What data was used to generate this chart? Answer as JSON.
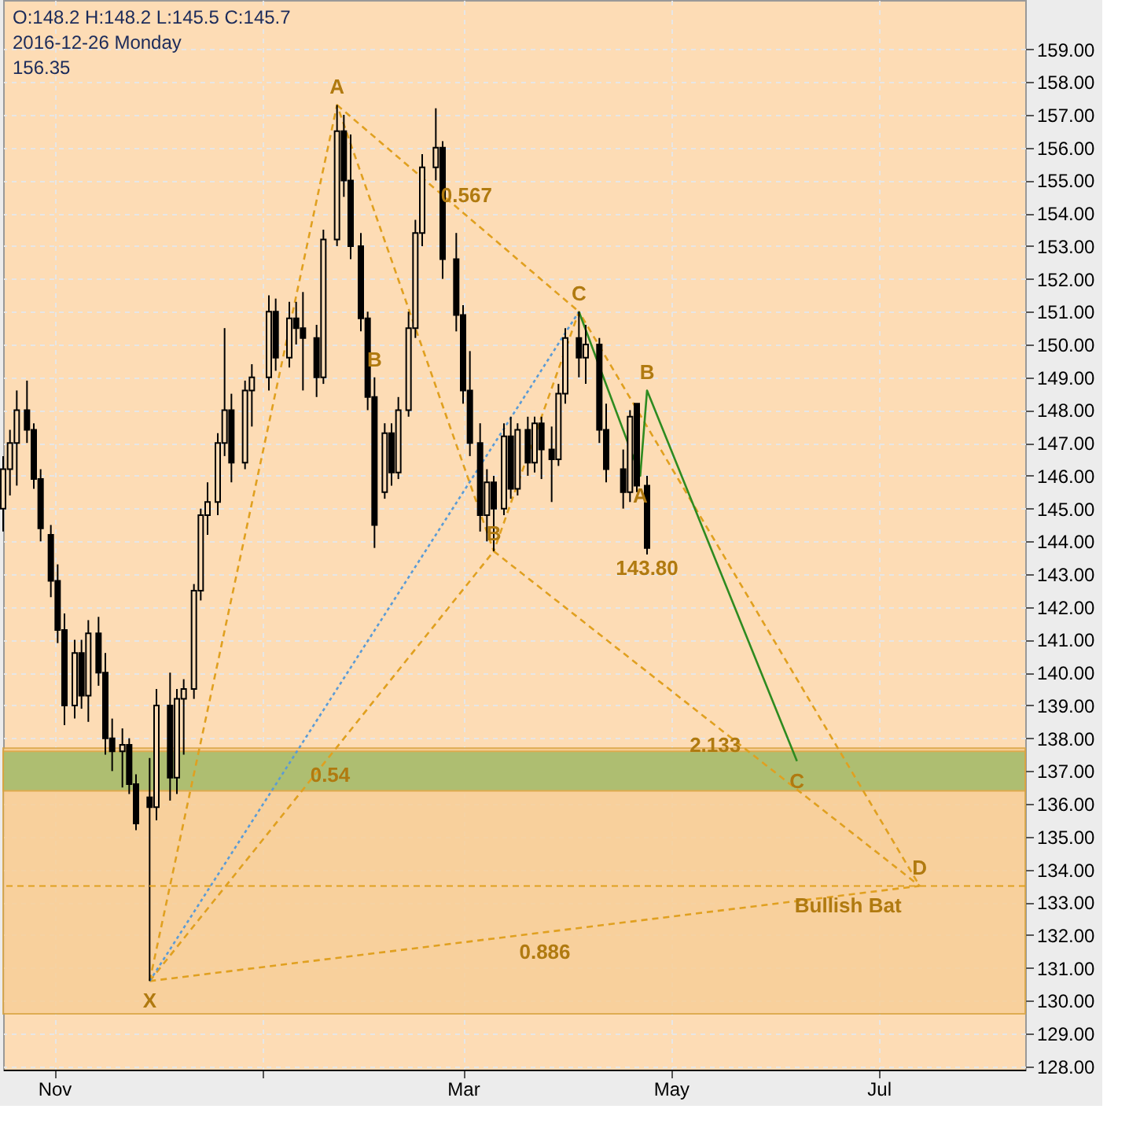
{
  "chart_data": {
    "type": "candlestick",
    "color": "#000000",
    "x": [
      "2016-10-17",
      "2016-10-19",
      "2016-10-21",
      "2016-10-24",
      "2016-10-26",
      "2016-10-28",
      "2016-10-31",
      "2016-11-02",
      "2016-11-04",
      "2016-11-07",
      "2016-11-09",
      "2016-11-11",
      "2016-11-14",
      "2016-11-16",
      "2016-11-18",
      "2016-11-21",
      "2016-11-23",
      "2016-11-25",
      "2016-11-29",
      "2016-12-01",
      "2016-12-05",
      "2016-12-07",
      "2016-12-09",
      "2016-12-12",
      "2016-12-14",
      "2016-12-16",
      "2016-12-19",
      "2016-12-21",
      "2016-12-23",
      "2016-12-27",
      "2016-12-29",
      "2017-01-03",
      "2017-01-05",
      "2017-01-09",
      "2017-01-11",
      "2017-01-13",
      "2017-01-17",
      "2017-01-19",
      "2017-01-23",
      "2017-01-25",
      "2017-01-27",
      "2017-01-30",
      "2017-02-01",
      "2017-02-03",
      "2017-02-06",
      "2017-02-08",
      "2017-02-10",
      "2017-02-13",
      "2017-02-15",
      "2017-02-17",
      "2017-02-21",
      "2017-02-23",
      "2017-02-27",
      "2017-03-01",
      "2017-03-03",
      "2017-03-06",
      "2017-03-08",
      "2017-03-10",
      "2017-03-13",
      "2017-03-15",
      "2017-03-17",
      "2017-03-20",
      "2017-03-22",
      "2017-03-24",
      "2017-03-27",
      "2017-03-29",
      "2017-03-31",
      "2017-04-04",
      "2017-04-06",
      "2017-04-10",
      "2017-04-12",
      "2017-04-17",
      "2017-04-19",
      "2017-04-21",
      "2017-04-24"
    ],
    "ohlc": [
      [
        145.0,
        146.6,
        144.3,
        146.2
      ],
      [
        146.2,
        147.4,
        145.4,
        147.0
      ],
      [
        147.0,
        148.6,
        145.7,
        148.0
      ],
      [
        148.0,
        148.9,
        147.0,
        147.4
      ],
      [
        147.4,
        147.6,
        145.6,
        145.9
      ],
      [
        145.9,
        146.2,
        144.0,
        144.4
      ],
      [
        144.2,
        144.5,
        142.3,
        142.8
      ],
      [
        142.8,
        143.3,
        140.9,
        141.3
      ],
      [
        141.3,
        141.8,
        138.4,
        139.0
      ],
      [
        139.0,
        141.0,
        138.6,
        140.6
      ],
      [
        140.6,
        141.0,
        138.9,
        139.3
      ],
      [
        139.3,
        141.6,
        138.5,
        141.2
      ],
      [
        141.2,
        141.7,
        139.6,
        140.0
      ],
      [
        140.0,
        140.6,
        137.5,
        138.0
      ],
      [
        138.0,
        138.6,
        137.0,
        137.6
      ],
      [
        137.6,
        138.3,
        136.5,
        137.8
      ],
      [
        137.8,
        138.0,
        136.3,
        136.6
      ],
      [
        136.6,
        136.9,
        135.2,
        135.4
      ],
      [
        136.2,
        137.4,
        130.6,
        135.9
      ],
      [
        135.9,
        139.5,
        135.5,
        139.0
      ],
      [
        139.0,
        140.0,
        136.1,
        136.8
      ],
      [
        136.8,
        139.5,
        136.3,
        139.2
      ],
      [
        139.2,
        139.8,
        137.5,
        139.5
      ],
      [
        139.5,
        142.7,
        139.2,
        142.5
      ],
      [
        142.5,
        145.0,
        142.2,
        144.8
      ],
      [
        144.8,
        145.8,
        144.2,
        145.2
      ],
      [
        145.2,
        147.3,
        144.8,
        147.0
      ],
      [
        147.0,
        150.5,
        146.6,
        148.0
      ],
      [
        148.0,
        148.5,
        145.8,
        146.4
      ],
      [
        146.4,
        148.9,
        146.2,
        148.6
      ],
      [
        148.6,
        149.4,
        147.5,
        149.0
      ],
      [
        149.0,
        151.5,
        148.6,
        151.0
      ],
      [
        151.0,
        151.4,
        149.2,
        149.6
      ],
      [
        149.6,
        151.3,
        149.3,
        150.8
      ],
      [
        150.8,
        151.3,
        150.0,
        150.5
      ],
      [
        150.5,
        151.6,
        148.6,
        150.2
      ],
      [
        150.2,
        150.6,
        148.4,
        149.0
      ],
      [
        149.0,
        153.5,
        148.8,
        153.2
      ],
      [
        153.2,
        157.3,
        153.0,
        156.5
      ],
      [
        156.5,
        157.0,
        154.5,
        155.0
      ],
      [
        155.0,
        156.4,
        152.6,
        153.0
      ],
      [
        153.0,
        153.4,
        150.4,
        150.8
      ],
      [
        150.8,
        151.0,
        148.0,
        148.4
      ],
      [
        148.4,
        149.0,
        143.8,
        144.5
      ],
      [
        145.5,
        147.6,
        145.3,
        147.3
      ],
      [
        147.3,
        147.6,
        145.7,
        146.1
      ],
      [
        146.1,
        148.4,
        145.9,
        148.0
      ],
      [
        148.0,
        151.0,
        147.8,
        150.5
      ],
      [
        150.5,
        153.8,
        150.2,
        153.4
      ],
      [
        153.4,
        155.8,
        153.0,
        155.4
      ],
      [
        155.4,
        157.2,
        155.0,
        156.0
      ],
      [
        156.0,
        156.2,
        152.0,
        152.6
      ],
      [
        152.6,
        153.4,
        150.4,
        150.9
      ],
      [
        150.9,
        151.2,
        148.2,
        148.6
      ],
      [
        148.6,
        149.8,
        146.6,
        147.0
      ],
      [
        147.0,
        147.6,
        144.3,
        144.8
      ],
      [
        144.8,
        146.2,
        144.0,
        145.8
      ],
      [
        145.8,
        146.0,
        143.7,
        145.0
      ],
      [
        145.0,
        147.6,
        144.8,
        147.2
      ],
      [
        147.2,
        147.8,
        145.3,
        145.6
      ],
      [
        145.6,
        147.6,
        145.4,
        147.4
      ],
      [
        147.4,
        147.8,
        146.0,
        146.4
      ],
      [
        146.4,
        147.8,
        146.1,
        147.6
      ],
      [
        147.6,
        147.8,
        145.9,
        146.8
      ],
      [
        146.8,
        147.5,
        145.2,
        146.5
      ],
      [
        146.5,
        148.8,
        146.3,
        148.5
      ],
      [
        148.5,
        150.5,
        148.2,
        150.2
      ],
      [
        150.2,
        151.0,
        149.0,
        149.6
      ],
      [
        149.6,
        150.6,
        148.8,
        150.0
      ],
      [
        150.0,
        150.2,
        147.0,
        147.4
      ],
      [
        147.4,
        148.2,
        145.8,
        146.2
      ],
      [
        146.2,
        146.8,
        145.0,
        145.5
      ],
      [
        145.5,
        148.0,
        145.2,
        147.8
      ],
      [
        148.2,
        148.2,
        145.5,
        145.7
      ],
      [
        145.7,
        146.0,
        143.6,
        143.8
      ]
    ],
    "series": [
      {
        "type": "line",
        "x": [
          "2016-11-29",
          "2017-01-23",
          "2017-03-10",
          "2017-04-04",
          "2017-07-13"
        ],
        "values": [
          130.6,
          157.3,
          143.7,
          151.0,
          133.5
        ],
        "color": "#e0a020",
        "line_style": "dashed"
      },
      {
        "type": "line",
        "x": [
          "2016-11-29",
          "2017-03-10"
        ],
        "values": [
          130.6,
          143.7
        ],
        "color": "#e0a020",
        "line_style": "dashed"
      },
      {
        "type": "line",
        "x": [
          "2017-01-23",
          "2017-04-04"
        ],
        "values": [
          157.3,
          151.0
        ],
        "color": "#e0a020",
        "line_style": "dashed"
      },
      {
        "type": "line",
        "x": [
          "2017-03-10",
          "2017-07-13"
        ],
        "values": [
          143.7,
          133.5
        ],
        "color": "#e0a020",
        "line_style": "dashed"
      },
      {
        "type": "line",
        "x": [
          "2016-11-29",
          "2017-07-13"
        ],
        "values": [
          130.6,
          133.5
        ],
        "color": "#e0a020",
        "line_style": "dashed"
      },
      {
        "type": "line",
        "x": [
          "2016-11-29",
          "2017-04-04"
        ],
        "values": [
          130.6,
          151.0
        ],
        "color": "#5b9bd5",
        "line_style": "dotted"
      },
      {
        "type": "line",
        "x": [
          "2017-04-04",
          "2017-04-22",
          "2017-04-24",
          "2017-06-07"
        ],
        "values": [
          151.0,
          146.0,
          148.6,
          137.3
        ],
        "color": "#2e8b20",
        "line_style": "solid"
      }
    ],
    "bands": [
      {
        "axis": "y",
        "from": 129.6,
        "to": 137.7,
        "color": "#f8cf98"
      },
      {
        "axis": "y",
        "from": 136.4,
        "to": 137.6,
        "color": "#a2bb6a"
      }
    ],
    "ref_lines": [
      {
        "axis": "y",
        "value": 133.5,
        "color": "#e0a020",
        "line_style": "dashed"
      }
    ],
    "annotations": [
      "O:148.2  H:148.2  L:145.5  C:145.7",
      {
        "text": "X",
        "x": "2016-11-29",
        "y": 130.6
      },
      {
        "text": "A",
        "x": "2017-01-23",
        "y": 157.3
      },
      {
        "text": "B",
        "x": "2017-03-10",
        "y": 143.7
      },
      {
        "text": "C",
        "x": "2017-04-04",
        "y": 151.0
      },
      {
        "text": "D",
        "x": "2017-07-13",
        "y": 133.5
      },
      {
        "text": "0.567",
        "x": "2017-03-02",
        "y": 154.0
      },
      {
        "text": "0.54",
        "x": "2017-01-21",
        "y": 137.5
      },
      {
        "text": "2.133",
        "x": "2017-05-14",
        "y": 138.4
      },
      {
        "text": "0.886",
        "x": "2017-03-25",
        "y": 132.1
      },
      {
        "text": "A",
        "x": "2017-04-22",
        "y": 146.0
      },
      {
        "text": "B",
        "x": "2017-04-24",
        "y": 148.6
      },
      {
        "text": "C",
        "x": "2017-06-07",
        "y": 137.3
      },
      {
        "text": "B",
        "x": "2017-02-03",
        "y": 149.0
      },
      {
        "text": "Bullish Bat",
        "x": "2017-06-22",
        "y": 133.5
      },
      "2016-12-26 Monday",
      "156.35",
      {
        "text": "143.80",
        "x": "2017-04-24",
        "y": 143.8
      }
    ],
    "xlim": [
      "2016-10-17",
      "2017-08-13"
    ],
    "xticks": [
      {
        "value": "2016-11-01",
        "label": "Nov"
      },
      {
        "value": "2017-01-01",
        "label": null
      },
      {
        "value": "2017-03-01",
        "label": "Mar"
      },
      {
        "value": "2017-05-01",
        "label": "May"
      },
      {
        "value": "2017-07-01",
        "label": "Jul"
      }
    ],
    "ylim": [
      127.9,
      160.5
    ],
    "yticks": [
      {
        "value": 128,
        "label": "128.00"
      },
      {
        "value": 129,
        "label": "129.00"
      },
      {
        "value": 130,
        "label": "130.00"
      },
      {
        "value": 131,
        "label": "131.00"
      },
      {
        "value": 132,
        "label": "132.00"
      },
      {
        "value": 133,
        "label": "133.00"
      },
      {
        "value": 134,
        "label": "134.00"
      },
      {
        "value": 135,
        "label": "135.00"
      },
      {
        "value": 136,
        "label": "136.00"
      },
      {
        "value": 137,
        "label": "137.00"
      },
      {
        "value": 138,
        "label": "138.00"
      },
      {
        "value": 139,
        "label": "139.00"
      },
      {
        "value": 140,
        "label": "140.00"
      },
      {
        "value": 141,
        "label": "141.00"
      },
      {
        "value": 142,
        "label": "142.00"
      },
      {
        "value": 143,
        "label": "143.00"
      },
      {
        "value": 144,
        "label": "144.00"
      },
      {
        "value": 145,
        "label": "145.00"
      },
      {
        "value": 146,
        "label": "146.00"
      },
      {
        "value": 147,
        "label": "147.00"
      },
      {
        "value": 148,
        "label": "148.00"
      },
      {
        "value": 149,
        "label": "149.00"
      },
      {
        "value": 150,
        "label": "150.00"
      },
      {
        "value": 151,
        "label": "151.00"
      },
      {
        "value": 152,
        "label": "152.00"
      },
      {
        "value": 153,
        "label": "153.00"
      },
      {
        "value": 154,
        "label": "154.00"
      },
      {
        "value": 155,
        "label": "155.00"
      },
      {
        "value": 156,
        "label": "156.00"
      },
      {
        "value": 157,
        "label": "157.00"
      },
      {
        "value": 158,
        "label": "158.00"
      },
      {
        "value": 159,
        "label": "159.00"
      }
    ],
    "grid": true
  }
}
